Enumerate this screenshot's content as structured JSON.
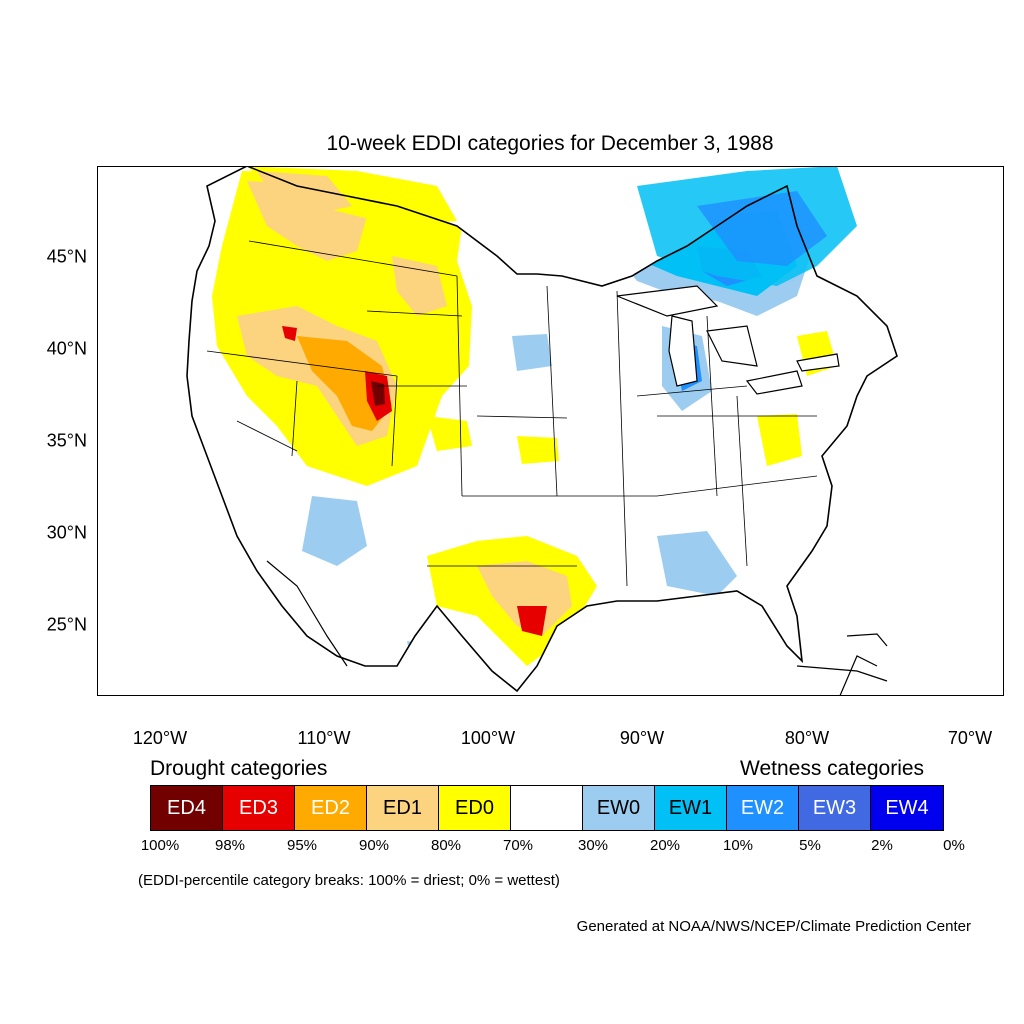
{
  "title": "10-week EDDI categories for December 3, 1988",
  "lat_labels": [
    "45°N",
    "40°N",
    "35°N",
    "30°N",
    "25°N"
  ],
  "lon_labels": [
    "120°W",
    "110°W",
    "100°W",
    "90°W",
    "80°W",
    "70°W"
  ],
  "legend": {
    "drought_heading": "Drought categories",
    "wetness_heading": "Wetness categories",
    "categories": [
      {
        "label": "ED4",
        "color": "#730000",
        "text_color": "#ffffff"
      },
      {
        "label": "ED3",
        "color": "#e60000",
        "text_color": "#ffffff"
      },
      {
        "label": "ED2",
        "color": "#ffaa00",
        "text_color": "#ffffff"
      },
      {
        "label": "ED1",
        "color": "#fcd37f",
        "text_color": "#000000"
      },
      {
        "label": "ED0",
        "color": "#ffff00",
        "text_color": "#000000"
      },
      {
        "label": "",
        "color": "#ffffff",
        "text_color": "#000000"
      },
      {
        "label": "EW0",
        "color": "#9ccdf0",
        "text_color": "#000000"
      },
      {
        "label": "EW1",
        "color": "#00c0f5",
        "text_color": "#000000"
      },
      {
        "label": "EW2",
        "color": "#1e90ff",
        "text_color": "#ffffff"
      },
      {
        "label": "EW3",
        "color": "#4169e1",
        "text_color": "#ffffff"
      },
      {
        "label": "EW4",
        "color": "#0000ee",
        "text_color": "#ffffff"
      }
    ],
    "percentiles": [
      "100%",
      "98%",
      "95%",
      "90%",
      "80%",
      "70%",
      "30%",
      "20%",
      "10%",
      "5%",
      "2%",
      "0%"
    ]
  },
  "note": "(EDDI-percentile category breaks: 100% = driest; 0% = wettest)",
  "credit": "Generated at NOAA/NWS/NCEP/Climate Prediction Center"
}
